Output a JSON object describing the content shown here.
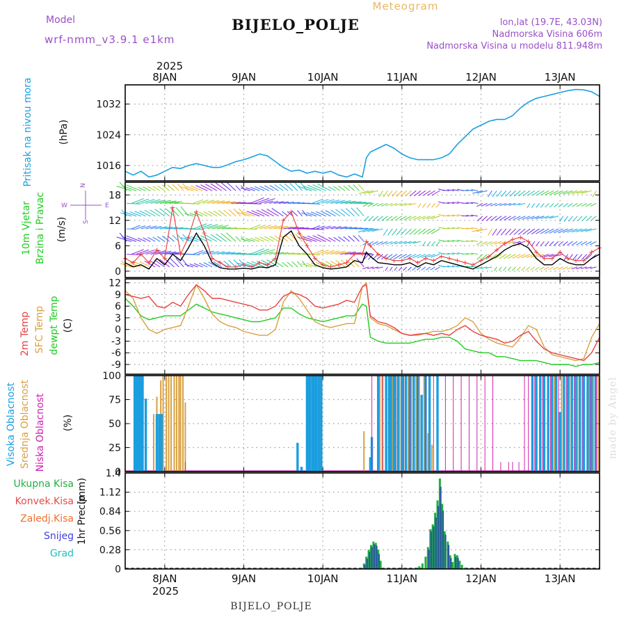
{
  "header": {
    "model_label": "Model",
    "model_name": "wrf-nmm_v3.9.1 e1km",
    "title": "BIJELO_POLJE",
    "meteogram_label": "Meteogram",
    "lonlat": "lon,lat (19.7E, 43.03N)",
    "altitude": "Nadmorska Visina 606m",
    "altitude_model": "Nadmorska Visina u modelu 811.948m",
    "footer_station": "BIJELO_POLJE",
    "watermark": "made by Angel"
  },
  "colors": {
    "pressure": "#1aa0e0",
    "wind_speed": "#000000",
    "gust": "#e84848",
    "t2m": "#e84040",
    "sfc": "#d8a040",
    "dewpt": "#20cc20",
    "cloud_high": "#1a9ee0",
    "cloud_mid": "#d8a040",
    "cloud_low": "#cc22aa",
    "precip_total": "#20b040",
    "precip_conv": "#e84848",
    "precip_frozen": "#f07030",
    "precip_snow": "#4040e0",
    "precip_hail": "#20c0c0",
    "title_purple": "#9a4fc8",
    "meteogram_orange": "#e8b860"
  },
  "chart_data": [
    {
      "type": "line",
      "name": "pressure",
      "ylabel_main": "Pritisak na nivou mora",
      "ylabel_unit": "(hPa)",
      "ylim": [
        1012,
        1037
      ],
      "yticks": [
        1016,
        1024,
        1032
      ],
      "x_days": [
        7.5,
        7.6,
        7.7,
        7.8,
        7.9,
        8.0,
        8.1,
        8.2,
        8.3,
        8.4,
        8.5,
        8.6,
        8.7,
        8.8,
        8.9,
        9.0,
        9.1,
        9.2,
        9.3,
        9.4,
        9.5,
        9.6,
        9.7,
        9.8,
        9.9,
        10.0,
        10.1,
        10.2,
        10.3,
        10.4,
        10.5,
        10.55,
        10.6,
        10.7,
        10.8,
        10.9,
        11.0,
        11.1,
        11.2,
        11.3,
        11.4,
        11.5,
        11.6,
        11.7,
        11.8,
        11.9,
        12.0,
        12.1,
        12.2,
        12.3,
        12.4,
        12.5,
        12.6,
        12.7,
        12.8,
        12.9,
        13.0,
        13.1,
        13.2,
        13.3,
        13.4,
        13.5
      ],
      "values": [
        1014.5,
        1013.5,
        1014.5,
        1013,
        1013.5,
        1014.5,
        1015.5,
        1015.2,
        1016,
        1016.5,
        1016,
        1015.5,
        1015.5,
        1016.2,
        1017,
        1017.5,
        1018.2,
        1019,
        1018.5,
        1017,
        1015.5,
        1014.5,
        1014.8,
        1014,
        1014.5,
        1014,
        1014.5,
        1013.5,
        1013,
        1013.8,
        1013,
        1018,
        1019.5,
        1020.5,
        1021.5,
        1020.5,
        1019,
        1018,
        1017.5,
        1017.5,
        1017.5,
        1018,
        1019,
        1021.5,
        1023.5,
        1025.5,
        1026.5,
        1027.5,
        1028,
        1028,
        1029,
        1031,
        1032.5,
        1033.5,
        1034,
        1034.5,
        1035,
        1035.5,
        1035.8,
        1035.7,
        1035.2,
        1034
      ]
    },
    {
      "type": "line",
      "name": "wind",
      "ylabel_main": "10m Vjetar",
      "ylabel_sub": "Brzina i Pravac",
      "ylabel_unit": "(m/s)",
      "compass": {
        "n": "N",
        "s": "S",
        "e": "E",
        "w": "W"
      },
      "ylim": [
        -1.5,
        21
      ],
      "yticks": [
        0,
        6,
        12,
        18
      ],
      "x_days": [
        7.5,
        7.6,
        7.7,
        7.8,
        7.9,
        8.0,
        8.1,
        8.2,
        8.3,
        8.4,
        8.5,
        8.6,
        8.7,
        8.8,
        8.9,
        9.0,
        9.1,
        9.2,
        9.3,
        9.4,
        9.5,
        9.6,
        9.7,
        9.8,
        9.9,
        10.0,
        10.1,
        10.2,
        10.3,
        10.4,
        10.5,
        10.55,
        10.6,
        10.7,
        10.8,
        10.9,
        11.0,
        11.1,
        11.2,
        11.3,
        11.4,
        11.5,
        11.6,
        11.7,
        11.8,
        11.9,
        12.0,
        12.1,
        12.2,
        12.3,
        12.4,
        12.5,
        12.6,
        12.7,
        12.8,
        12.9,
        13.0,
        13.1,
        13.2,
        13.3,
        13.4,
        13.5
      ],
      "speed": [
        2,
        1,
        1.5,
        0.5,
        3,
        1.5,
        4,
        2.5,
        5.5,
        9,
        6,
        2,
        0.8,
        0.5,
        0.5,
        0.7,
        0.5,
        1,
        0.8,
        1.5,
        8,
        9.5,
        6,
        4,
        1.5,
        0.8,
        0.5,
        0.7,
        1,
        2.5,
        2,
        4.5,
        3.5,
        2,
        1.8,
        1.5,
        1.5,
        2,
        1,
        2,
        1.5,
        2.5,
        2,
        1.5,
        1,
        0.5,
        1.5,
        2.5,
        3.5,
        5,
        6,
        6.5,
        5.5,
        3,
        1.5,
        1.5,
        3,
        2,
        1.5,
        1.5,
        3,
        4
      ],
      "gust": [
        3,
        2,
        4,
        2,
        5,
        3,
        15,
        4,
        8,
        14,
        9,
        3,
        2,
        1,
        1,
        1.5,
        1,
        2,
        1.5,
        3,
        12,
        14,
        9,
        6,
        3,
        1.5,
        1,
        1.5,
        2,
        4,
        4,
        7,
        6,
        4,
        3,
        2.5,
        2.5,
        3,
        2,
        3,
        2.5,
        3.5,
        3,
        2.5,
        2,
        1.5,
        2.5,
        3.5,
        5,
        6.5,
        7.5,
        8,
        7,
        4.5,
        3,
        3,
        4.5,
        3,
        2.5,
        2.5,
        4.5,
        5.5
      ]
    },
    {
      "type": "line",
      "name": "temperature",
      "ylabel_main": "2m Temp",
      "ylabel_sub": "SFC Temp",
      "ylabel_sub2": "dewpt Temp",
      "ylabel_unit": "(C)",
      "ylim": [
        -11.5,
        13
      ],
      "yticks": [
        -9,
        -6,
        -3,
        0,
        3,
        6,
        9,
        12
      ],
      "x_days": [
        7.5,
        7.6,
        7.7,
        7.8,
        7.9,
        8.0,
        8.1,
        8.2,
        8.3,
        8.4,
        8.5,
        8.6,
        8.7,
        8.8,
        8.9,
        9.0,
        9.1,
        9.2,
        9.3,
        9.4,
        9.5,
        9.6,
        9.7,
        9.8,
        9.9,
        10.0,
        10.1,
        10.2,
        10.3,
        10.4,
        10.5,
        10.55,
        10.6,
        10.7,
        10.8,
        10.9,
        11.0,
        11.1,
        11.2,
        11.3,
        11.4,
        11.5,
        11.6,
        11.7,
        11.8,
        11.9,
        12.0,
        12.1,
        12.2,
        12.3,
        12.4,
        12.5,
        12.6,
        12.7,
        12.8,
        12.9,
        13.0,
        13.1,
        13.2,
        13.3,
        13.4,
        13.5
      ],
      "t2m": [
        9,
        8.5,
        8,
        8.5,
        6,
        5.5,
        7,
        6,
        9,
        11.5,
        10,
        8,
        8,
        7.5,
        7,
        6.5,
        6,
        5,
        5,
        6,
        8.5,
        9.5,
        9,
        8,
        6,
        5.5,
        6,
        6.5,
        7.5,
        7,
        11,
        11.5,
        3.5,
        2,
        1.5,
        0.5,
        -1,
        -1.5,
        -1.2,
        -1,
        -1.5,
        -1,
        -1.5,
        0,
        1,
        -0.5,
        -1.5,
        -2,
        -2.5,
        -3.5,
        -3,
        -1.5,
        -0.5,
        -3,
        -5,
        -6,
        -6.5,
        -7,
        -7.5,
        -8,
        -6,
        -2
      ],
      "sfc": [
        10,
        8,
        3,
        0,
        -1,
        0,
        0.5,
        1,
        6,
        11.5,
        8,
        4,
        2,
        1,
        0.5,
        -0.5,
        -1,
        -1.5,
        -1.5,
        0,
        7,
        10,
        8,
        5,
        2,
        1,
        0.5,
        1,
        1.5,
        1.5,
        11,
        12,
        3,
        1.5,
        1,
        0,
        -1,
        -1.5,
        -1.5,
        -1,
        -0.5,
        -0.5,
        0,
        1,
        3,
        2,
        -1,
        -2.5,
        -3.5,
        -4,
        -4.5,
        -2,
        1,
        0,
        -4.5,
        -6.5,
        -7,
        -7.5,
        -8,
        -7.5,
        -2,
        1.5
      ],
      "dewpt": [
        8,
        6,
        3.5,
        2.5,
        3,
        3.5,
        3.5,
        3.5,
        5,
        6.5,
        5.5,
        4.5,
        4,
        3.5,
        3,
        2.5,
        2,
        2,
        2.5,
        3,
        5.5,
        5.5,
        4,
        3,
        2.5,
        2,
        2.5,
        3,
        3.5,
        3.5,
        6.5,
        6,
        -2,
        -3,
        -3.5,
        -3.5,
        -3.5,
        -3.5,
        -3,
        -2.5,
        -2.5,
        -2,
        -2,
        -3,
        -5,
        -5.5,
        -6,
        -6,
        -7,
        -7,
        -7.5,
        -8,
        -8,
        -8,
        -8.5,
        -9,
        -9,
        -9,
        -9.5,
        -9,
        -9,
        -8.5
      ]
    },
    {
      "type": "bar",
      "name": "cloud_cover",
      "ylabel_main": "Visoka Oblacnost",
      "ylabel_sub": "Srednja Oblacnost",
      "ylabel_sub2": "Niska Oblacnost",
      "ylabel_unit": "(%)",
      "ylim": [
        0,
        100
      ],
      "yticks": [
        0,
        25,
        50,
        75,
        100
      ],
      "high": [
        [
          7.62,
          100
        ],
        [
          7.64,
          100
        ],
        [
          7.66,
          100
        ],
        [
          7.68,
          100
        ],
        [
          7.7,
          100
        ],
        [
          7.72,
          100
        ],
        [
          7.76,
          76
        ],
        [
          7.9,
          60
        ],
        [
          7.93,
          60
        ],
        [
          7.96,
          60
        ],
        [
          9.68,
          30
        ],
        [
          9.73,
          5
        ],
        [
          9.8,
          100
        ],
        [
          9.82,
          100
        ],
        [
          9.84,
          100
        ],
        [
          9.87,
          100
        ],
        [
          9.9,
          100
        ],
        [
          9.92,
          100
        ],
        [
          9.95,
          100
        ],
        [
          9.98,
          100
        ],
        [
          10.6,
          15
        ],
        [
          10.62,
          36
        ],
        [
          10.7,
          100
        ],
        [
          10.8,
          100
        ],
        [
          10.84,
          100
        ],
        [
          10.86,
          100
        ],
        [
          10.9,
          100
        ],
        [
          10.95,
          100
        ],
        [
          11.0,
          100
        ],
        [
          11.05,
          100
        ],
        [
          11.1,
          100
        ],
        [
          11.15,
          100
        ],
        [
          11.2,
          100
        ],
        [
          11.25,
          80
        ],
        [
          11.3,
          100
        ],
        [
          11.35,
          100
        ],
        [
          11.45,
          100
        ],
        [
          12.65,
          100
        ],
        [
          12.7,
          100
        ],
        [
          12.75,
          100
        ],
        [
          12.8,
          100
        ],
        [
          12.85,
          100
        ],
        [
          12.9,
          100
        ],
        [
          12.95,
          100
        ],
        [
          13.0,
          62
        ],
        [
          13.05,
          100
        ],
        [
          13.1,
          100
        ],
        [
          13.15,
          100
        ],
        [
          13.2,
          100
        ],
        [
          13.25,
          100
        ],
        [
          13.3,
          100
        ],
        [
          13.35,
          100
        ],
        [
          13.4,
          100
        ],
        [
          13.45,
          100
        ]
      ],
      "mid": [
        [
          7.86,
          60
        ],
        [
          7.9,
          78
        ],
        [
          7.95,
          95
        ],
        [
          7.98,
          100
        ],
        [
          8.02,
          100
        ],
        [
          8.05,
          100
        ],
        [
          8.08,
          100
        ],
        [
          8.12,
          100
        ],
        [
          8.15,
          100
        ],
        [
          8.18,
          100
        ],
        [
          8.2,
          100
        ],
        [
          8.23,
          100
        ],
        [
          8.26,
          72
        ],
        [
          9.88,
          100
        ],
        [
          9.92,
          100
        ],
        [
          9.97,
          100
        ],
        [
          10.52,
          42
        ],
        [
          10.72,
          100
        ],
        [
          10.75,
          100
        ],
        [
          10.83,
          100
        ],
        [
          10.88,
          100
        ],
        [
          10.92,
          100
        ],
        [
          10.97,
          100
        ],
        [
          11.02,
          100
        ],
        [
          11.08,
          100
        ],
        [
          11.12,
          100
        ],
        [
          11.18,
          100
        ],
        [
          11.22,
          100
        ],
        [
          11.28,
          100
        ],
        [
          11.33,
          40
        ],
        [
          11.38,
          28
        ],
        [
          12.75,
          100
        ],
        [
          12.85,
          100
        ],
        [
          12.93,
          100
        ],
        [
          13.02,
          100
        ],
        [
          13.12,
          100
        ],
        [
          13.22,
          100
        ],
        [
          13.3,
          100
        ],
        [
          13.37,
          100
        ],
        [
          13.42,
          100
        ],
        [
          13.48,
          100
        ]
      ],
      "low": [
        [
          8.26,
          10
        ],
        [
          10.62,
          100
        ],
        [
          10.76,
          100
        ],
        [
          10.92,
          100
        ],
        [
          11.02,
          100
        ],
        [
          11.1,
          100
        ],
        [
          11.2,
          100
        ],
        [
          11.3,
          100
        ],
        [
          11.4,
          100
        ],
        [
          11.55,
          100
        ],
        [
          11.65,
          100
        ],
        [
          11.75,
          100
        ],
        [
          11.85,
          100
        ],
        [
          11.95,
          100
        ],
        [
          12.05,
          100
        ],
        [
          12.15,
          100
        ],
        [
          12.25,
          10
        ],
        [
          12.35,
          10
        ],
        [
          12.4,
          10
        ],
        [
          12.48,
          10
        ],
        [
          12.55,
          100
        ],
        [
          12.6,
          100
        ],
        [
          12.68,
          100
        ],
        [
          12.78,
          100
        ],
        [
          12.88,
          100
        ],
        [
          12.98,
          100
        ],
        [
          13.08,
          100
        ],
        [
          13.18,
          100
        ],
        [
          13.28,
          100
        ],
        [
          13.38,
          100
        ],
        [
          13.46,
          100
        ]
      ]
    },
    {
      "type": "bar",
      "name": "precipitation",
      "ylabel_main": "1hr Precip",
      "ylabel_unit": "(mm)",
      "legend": [
        "Ukupna Kisa",
        "Konvek.Kisa",
        "Zaledj.Kisa",
        "Snijeg",
        "Grad"
      ],
      "ylim": [
        0,
        1.4
      ],
      "yticks": [
        0,
        0.28,
        0.56,
        0.84,
        1.12,
        1.4
      ],
      "total": [
        [
          10.52,
          0.08
        ],
        [
          10.55,
          0.18
        ],
        [
          10.58,
          0.28
        ],
        [
          10.61,
          0.35
        ],
        [
          10.64,
          0.4
        ],
        [
          10.67,
          0.38
        ],
        [
          10.7,
          0.28
        ],
        [
          10.73,
          0.12
        ],
        [
          11.18,
          0.02
        ],
        [
          11.22,
          0.04
        ],
        [
          11.26,
          0.08
        ],
        [
          11.3,
          0.18
        ],
        [
          11.33,
          0.32
        ],
        [
          11.36,
          0.58
        ],
        [
          11.39,
          0.65
        ],
        [
          11.42,
          0.82
        ],
        [
          11.45,
          1.0
        ],
        [
          11.48,
          1.32
        ],
        [
          11.51,
          0.95
        ],
        [
          11.54,
          0.55
        ],
        [
          11.58,
          0.4
        ],
        [
          11.61,
          0.2
        ],
        [
          11.64,
          0.1
        ],
        [
          11.67,
          0.22
        ],
        [
          11.7,
          0.2
        ],
        [
          11.73,
          0.12
        ],
        [
          11.76,
          0.06
        ],
        [
          11.8,
          0.02
        ]
      ],
      "snow": [
        [
          10.53,
          0.06
        ],
        [
          10.56,
          0.15
        ],
        [
          10.59,
          0.25
        ],
        [
          10.62,
          0.32
        ],
        [
          10.65,
          0.36
        ],
        [
          10.68,
          0.34
        ],
        [
          10.71,
          0.22
        ],
        [
          11.34,
          0.28
        ],
        [
          11.37,
          0.55
        ],
        [
          11.4,
          0.62
        ],
        [
          11.43,
          0.75
        ],
        [
          11.46,
          0.92
        ],
        [
          11.49,
          1.2
        ],
        [
          11.52,
          0.85
        ],
        [
          11.55,
          0.5
        ],
        [
          11.59,
          0.35
        ],
        [
          11.62,
          0.16
        ],
        [
          11.68,
          0.18
        ],
        [
          11.71,
          0.16
        ]
      ]
    }
  ],
  "xaxis": {
    "year_label": "2025",
    "days": [
      {
        "label": "8JAN",
        "day": 8
      },
      {
        "label": "9JAN",
        "day": 9
      },
      {
        "label": "10JAN",
        "day": 10
      },
      {
        "label": "11JAN",
        "day": 11
      },
      {
        "label": "12JAN",
        "day": 12
      },
      {
        "label": "13JAN",
        "day": 13
      }
    ],
    "xlim": [
      7.5,
      13.5
    ]
  }
}
